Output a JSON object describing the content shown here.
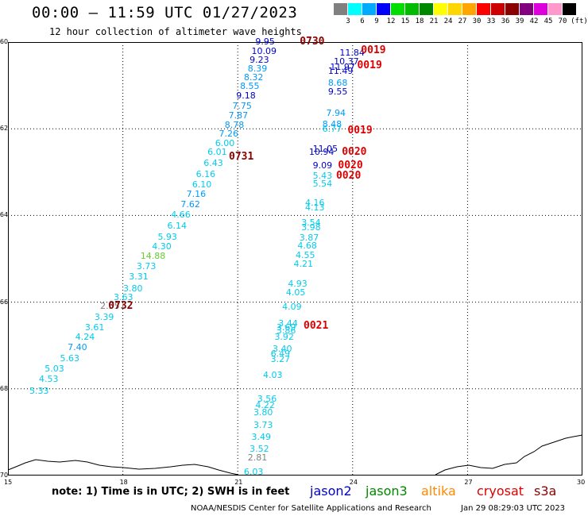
{
  "header": {
    "title": "00:00 – 11:59 UTC 01/27/2023",
    "subtitle": "12 hour collection of altimeter wave heights"
  },
  "scale": {
    "unit": "(ft)",
    "colors": [
      "#808080",
      "#00ffff",
      "#00aaff",
      "#0000ff",
      "#00dd00",
      "#00bb00",
      "#008800",
      "#ffff00",
      "#ffd700",
      "#ffa500",
      "#ff0000",
      "#cc0000",
      "#8b0000",
      "#800080",
      "#dd00dd",
      "#ff99cc",
      "#000000"
    ],
    "labels": [
      "3",
      "6",
      "9",
      "12",
      "15",
      "18",
      "21",
      "24",
      "27",
      "30",
      "33",
      "36",
      "39",
      "42",
      "45",
      "70"
    ]
  },
  "map": {
    "lat_labels": [
      "-60",
      "-62",
      "-64",
      "-66",
      "-68",
      "-70"
    ],
    "lon_labels": [
      "15",
      "18",
      "21",
      "24",
      "27",
      "30"
    ],
    "lon_range": [
      15,
      30
    ],
    "lat_range": [
      -60,
      -70
    ]
  },
  "observations": [
    {
      "text": "9.95",
      "color": "#0000cc",
      "lon": 21.75,
      "lat": -60.0
    },
    {
      "text": "10.09",
      "color": "#0000cc",
      "lon": 21.65,
      "lat": -60.22
    },
    {
      "text": "9.23",
      "color": "#0000cc",
      "lon": 21.6,
      "lat": -60.42
    },
    {
      "text": "8.39",
      "color": "#0099ff",
      "lon": 21.55,
      "lat": -60.62
    },
    {
      "text": "8.32",
      "color": "#0099ff",
      "lon": 21.45,
      "lat": -60.82
    },
    {
      "text": "8.55",
      "color": "#0099ff",
      "lon": 21.35,
      "lat": -61.02
    },
    {
      "text": "9.18",
      "color": "#0000cc",
      "lon": 21.25,
      "lat": -61.25
    },
    {
      "text": "7.75",
      "color": "#0099ff",
      "lon": 21.15,
      "lat": -61.48
    },
    {
      "text": "7.87",
      "color": "#0099ff",
      "lon": 21.05,
      "lat": -61.7
    },
    {
      "text": "8.78",
      "color": "#0099ff",
      "lon": 20.95,
      "lat": -61.92
    },
    {
      "text": "7.26",
      "color": "#0099ff",
      "lon": 20.8,
      "lat": -62.12
    },
    {
      "text": "6.00",
      "color": "#00ccee",
      "lon": 20.7,
      "lat": -62.35
    },
    {
      "text": "6.01",
      "color": "#00ccee",
      "lon": 20.5,
      "lat": -62.55
    },
    {
      "text": "6.43",
      "color": "#00ccee",
      "lon": 20.4,
      "lat": -62.8
    },
    {
      "text": "6.16",
      "color": "#00ccee",
      "lon": 20.2,
      "lat": -63.05
    },
    {
      "text": "6.10",
      "color": "#00ccee",
      "lon": 20.1,
      "lat": -63.3
    },
    {
      "text": "7.16",
      "color": "#0099ff",
      "lon": 19.95,
      "lat": -63.52
    },
    {
      "text": "7.62",
      "color": "#0099ff",
      "lon": 19.8,
      "lat": -63.75
    },
    {
      "text": "4.66",
      "color": "#00ccee",
      "lon": 19.55,
      "lat": -64.0
    },
    {
      "text": "6.14",
      "color": "#00ccee",
      "lon": 19.45,
      "lat": -64.25
    },
    {
      "text": "5.93",
      "color": "#00ccee",
      "lon": 19.2,
      "lat": -64.5
    },
    {
      "text": "4.30",
      "color": "#00ccee",
      "lon": 19.05,
      "lat": -64.72
    },
    {
      "text": "14.88",
      "color": "#66cc33",
      "lon": 18.75,
      "lat": -64.95
    },
    {
      "text": "3.73",
      "color": "#00ccee",
      "lon": 18.65,
      "lat": -65.18
    },
    {
      "text": "3.31",
      "color": "#00ccee",
      "lon": 18.45,
      "lat": -65.42
    },
    {
      "text": "3.80",
      "color": "#00ccee",
      "lon": 18.3,
      "lat": -65.7
    },
    {
      "text": "3.63",
      "color": "#00ccee",
      "lon": 18.05,
      "lat": -65.9
    },
    {
      "text": "2.55",
      "color": "#808080",
      "lon": 17.7,
      "lat": -66.1
    },
    {
      "text": "3.39",
      "color": "#00ccee",
      "lon": 17.55,
      "lat": -66.35
    },
    {
      "text": "3.61",
      "color": "#00ccee",
      "lon": 17.3,
      "lat": -66.6
    },
    {
      "text": "4.24",
      "color": "#00ccee",
      "lon": 17.05,
      "lat": -66.82
    },
    {
      "text": "7.40",
      "color": "#0099ff",
      "lon": 16.85,
      "lat": -67.05
    },
    {
      "text": "5.63",
      "color": "#00ccee",
      "lon": 16.65,
      "lat": -67.3
    },
    {
      "text": "5.03",
      "color": "#00ccee",
      "lon": 16.25,
      "lat": -67.55
    },
    {
      "text": "4.53",
      "color": "#00ccee",
      "lon": 16.1,
      "lat": -67.78
    },
    {
      "text": "5.33",
      "color": "#00ccee",
      "lon": 15.85,
      "lat": -68.05
    },
    {
      "text": "11.84",
      "color": "#0000cc",
      "lon": 23.95,
      "lat": -60.25
    },
    {
      "text": "10.37",
      "color": "#0000cc",
      "lon": 23.8,
      "lat": -60.45
    },
    {
      "text": "11.97",
      "color": "#0000cc",
      "lon": 23.7,
      "lat": -60.58
    },
    {
      "text": "11.49",
      "color": "#0000cc",
      "lon": 23.65,
      "lat": -60.68
    },
    {
      "text": "8.68",
      "color": "#0099ff",
      "lon": 23.65,
      "lat": -60.95
    },
    {
      "text": "9.55",
      "color": "#0000cc",
      "lon": 23.65,
      "lat": -61.15
    },
    {
      "text": "7.94",
      "color": "#0099ff",
      "lon": 23.6,
      "lat": -61.65
    },
    {
      "text": "8.48",
      "color": "#0099ff",
      "lon": 23.5,
      "lat": -61.9
    },
    {
      "text": "6.77",
      "color": "#00ccee",
      "lon": 23.5,
      "lat": -62.02
    },
    {
      "text": "11.05",
      "color": "#0000cc",
      "lon": 23.25,
      "lat": -62.48
    },
    {
      "text": "10.94",
      "color": "#0000cc",
      "lon": 23.15,
      "lat": -62.55
    },
    {
      "text": "9.09",
      "color": "#0000cc",
      "lon": 23.25,
      "lat": -62.85
    },
    {
      "text": "5.43",
      "color": "#00ccee",
      "lon": 23.25,
      "lat": -63.1
    },
    {
      "text": "5.54",
      "color": "#00ccee",
      "lon": 23.25,
      "lat": -63.28
    },
    {
      "text": "4.16",
      "color": "#00ccee",
      "lon": 23.05,
      "lat": -63.72
    },
    {
      "text": "4.13",
      "color": "#00ccee",
      "lon": 23.05,
      "lat": -63.82
    },
    {
      "text": "3.54",
      "color": "#00ccee",
      "lon": 22.95,
      "lat": -64.18
    },
    {
      "text": "3.98",
      "color": "#00ccee",
      "lon": 22.95,
      "lat": -64.28
    },
    {
      "text": "3.87",
      "color": "#00ccee",
      "lon": 22.9,
      "lat": -64.52
    },
    {
      "text": "4.68",
      "color": "#00ccee",
      "lon": 22.85,
      "lat": -64.7
    },
    {
      "text": "4.55",
      "color": "#00ccee",
      "lon": 22.8,
      "lat": -64.92
    },
    {
      "text": "4.21",
      "color": "#00ccee",
      "lon": 22.75,
      "lat": -65.12
    },
    {
      "text": "4.93",
      "color": "#00ccee",
      "lon": 22.6,
      "lat": -65.58
    },
    {
      "text": "4.05",
      "color": "#00ccee",
      "lon": 22.55,
      "lat": -65.78
    },
    {
      "text": "4.09",
      "color": "#00ccee",
      "lon": 22.45,
      "lat": -66.12
    },
    {
      "text": "3.44",
      "color": "#00ccee",
      "lon": 22.35,
      "lat": -66.5
    },
    {
      "text": "3.69",
      "color": "#00ccee",
      "lon": 22.3,
      "lat": -66.6
    },
    {
      "text": "3.86",
      "color": "#00ccee",
      "lon": 22.3,
      "lat": -66.67
    },
    {
      "text": "3.92",
      "color": "#00ccee",
      "lon": 22.25,
      "lat": -66.82
    },
    {
      "text": "3.40",
      "color": "#00ccee",
      "lon": 22.2,
      "lat": -67.08
    },
    {
      "text": "6.49",
      "color": "#00ccee",
      "lon": 22.15,
      "lat": -67.2
    },
    {
      "text": "3.27",
      "color": "#00ccee",
      "lon": 22.15,
      "lat": -67.32
    },
    {
      "text": "4.03",
      "color": "#00ccee",
      "lon": 21.95,
      "lat": -67.7
    },
    {
      "text": "3.56",
      "color": "#00ccee",
      "lon": 21.8,
      "lat": -68.25
    },
    {
      "text": "4.22",
      "color": "#00ccee",
      "lon": 21.75,
      "lat": -68.38
    },
    {
      "text": "3.80",
      "color": "#00ccee",
      "lon": 21.7,
      "lat": -68.55
    },
    {
      "text": "3.73",
      "color": "#00ccee",
      "lon": 21.7,
      "lat": -68.85
    },
    {
      "text": "3.49",
      "color": "#00ccee",
      "lon": 21.65,
      "lat": -69.12
    },
    {
      "text": "3.52",
      "color": "#00ccee",
      "lon": 21.6,
      "lat": -69.4
    },
    {
      "text": "2.81",
      "color": "#808080",
      "lon": 21.55,
      "lat": -69.6
    },
    {
      "text": "6.03",
      "color": "#00ccee",
      "lon": 21.45,
      "lat": -69.92
    }
  ],
  "time_tags": [
    {
      "text": "0730",
      "color": "#8b0000",
      "lon": 22.95,
      "lat": -60.0
    },
    {
      "text": "0019",
      "color": "#dd0000",
      "lon": 24.55,
      "lat": -60.2
    },
    {
      "text": "0019",
      "color": "#dd0000",
      "lon": 24.45,
      "lat": -60.55
    },
    {
      "text": "0019",
      "color": "#dd0000",
      "lon": 24.2,
      "lat": -62.05
    },
    {
      "text": "0731",
      "color": "#8b0000",
      "lon": 21.1,
      "lat": -62.65
    },
    {
      "text": "0020",
      "color": "#dd0000",
      "lon": 24.05,
      "lat": -62.55
    },
    {
      "text": "0020",
      "color": "#dd0000",
      "lon": 23.95,
      "lat": -62.85
    },
    {
      "text": "0020",
      "color": "#dd0000",
      "lon": 23.9,
      "lat": -63.1
    },
    {
      "text": "0021",
      "color": "#dd0000",
      "lon": 23.05,
      "lat": -66.55
    },
    {
      "text": "0732",
      "color": "#8b0000",
      "lon": 17.95,
      "lat": -66.1
    }
  ],
  "footer": {
    "note": "note: 1) Time is in UTC; 2) SWH is in feet",
    "satellites": [
      {
        "name": "jason2",
        "color": "#0000cc"
      },
      {
        "name": "jason3",
        "color": "#008800"
      },
      {
        "name": "altika",
        "color": "#ff8800"
      },
      {
        "name": "cryosat",
        "color": "#dd0000"
      },
      {
        "name": "s3a",
        "color": "#8b0000"
      }
    ],
    "credit": "NOAA/NESDIS Center for Satellite Applications and Research",
    "timestamp": "Jan 29 08:29:03 UTC 2023"
  }
}
